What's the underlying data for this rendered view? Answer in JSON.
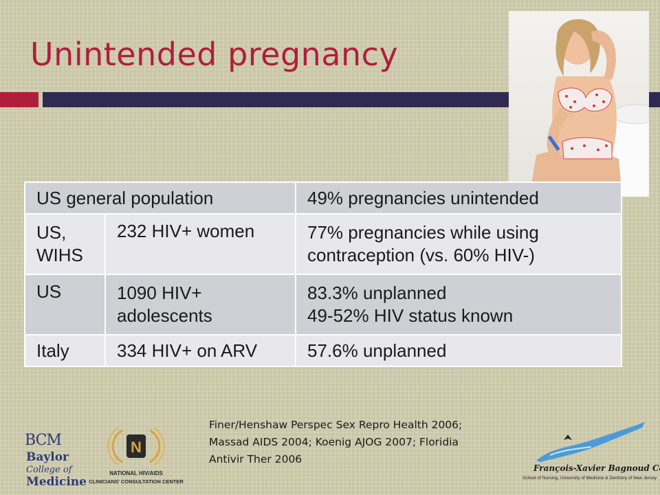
{
  "slide": {
    "title": "Unintended pregnancy",
    "colors": {
      "title": "#b01e3c",
      "accent_bar_left": "#b01e3c",
      "accent_bar_right": "#2f2a52",
      "background": "#c9c6a6"
    }
  },
  "photo": {
    "icon": "woman-with-pregnancy-test-photo"
  },
  "table": {
    "rows": [
      {
        "cells": [
          "US general population",
          "49% pregnancies unintended"
        ]
      },
      {
        "cells": [
          "US, WIHS",
          "232 HIV+ women",
          "77% pregnancies while using contraception (vs. 60% HIV-)"
        ]
      },
      {
        "cells": [
          "US",
          "1090 HIV+ adolescents",
          "83.3% unplanned",
          "49-52% HIV status known"
        ]
      },
      {
        "cells": [
          "Italy",
          "334 HIV+ on ARV",
          "57.6% unplanned"
        ]
      }
    ]
  },
  "citation": {
    "lines": [
      "Finer/Henshaw Perspec Sex Repro Health 2006;",
      "Massad AIDS 2004; Koenig AJOG 2007; Floridia",
      "Antivir Ther 2006"
    ]
  },
  "logos": {
    "bcm": {
      "mark": "BCM",
      "line1": "Baylor",
      "line2": "College of",
      "line3": "Medicine"
    },
    "nccc": {
      "line1": "NATIONAL HIV/AIDS",
      "line2": "CLINICIANS' CONSULTATION CENTER"
    },
    "fxb": {
      "name": "François-Xavier Bagnoud Center",
      "sub": "School of Nursing, University of Medicine & Dentistry of New Jersey"
    }
  }
}
